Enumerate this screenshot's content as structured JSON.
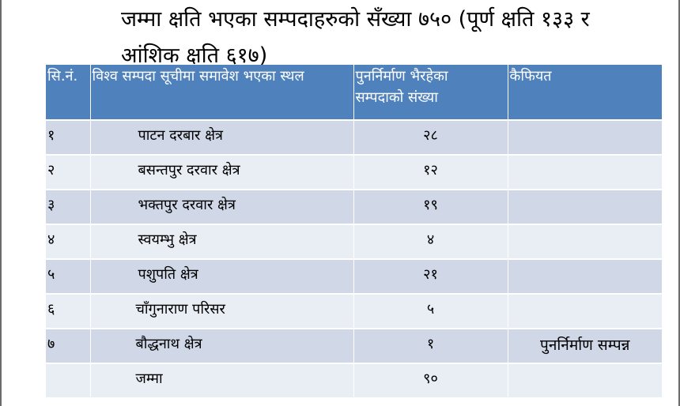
{
  "heading": {
    "line1": "जम्मा क्षति भएका सम्पदाहरुको सँख्या ७५० (पूर्ण क्षति १३३ र",
    "line2": "आंशिक क्षति ६१७)"
  },
  "table": {
    "headers": {
      "sn": "सि.नं.",
      "site": "विश्व सम्पदा सूचीमा समावेश भएका स्थल",
      "count_line1": "पुनर्निर्माण भैरहेका",
      "count_line2": "सम्पदाको संख्या",
      "remarks": "कैफियत"
    },
    "rows": [
      {
        "sn": "१",
        "site": "पाटन दरबार क्षेत्र",
        "count": "२८",
        "remarks": ""
      },
      {
        "sn": "२",
        "site": "बसन्तपुर दरवार क्षेत्र",
        "count": "१२",
        "remarks": ""
      },
      {
        "sn": "३",
        "site": "भक्तपुर दरवार क्षेत्र",
        "count": "१९",
        "remarks": ""
      },
      {
        "sn": "४",
        "site": "स्वयम्भु क्षेत्र",
        "count": "४",
        "remarks": ""
      },
      {
        "sn": "५",
        "site": "पशुपति क्षेत्र",
        "count": "२१",
        "remarks": ""
      },
      {
        "sn": "६",
        "site": "चाँगुनाराण परिसर",
        "count": "५",
        "remarks": ""
      },
      {
        "sn": "७",
        "site": "बौद्धनाथ क्षेत्र",
        "count": "१",
        "remarks": "पुनर्निर्माण सम्पन्न"
      }
    ],
    "total": {
      "sn": "",
      "label": "जम्मा",
      "count": "९०",
      "remarks": ""
    }
  }
}
